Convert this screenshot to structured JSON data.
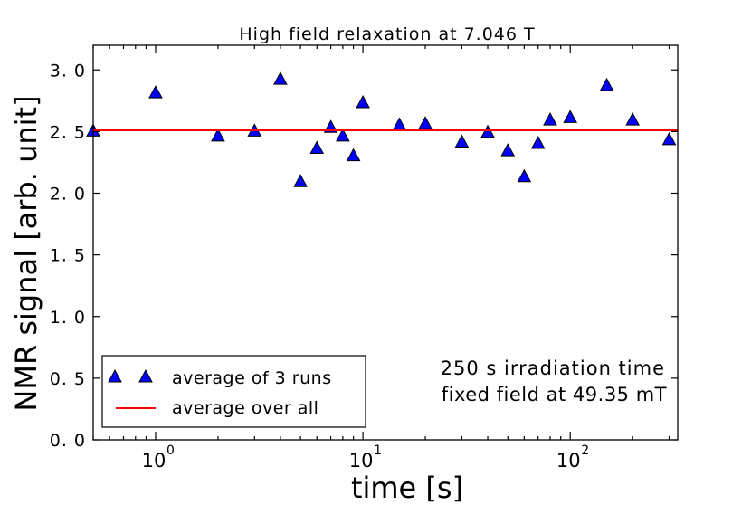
{
  "chart_data": {
    "type": "scatter",
    "title": "High field relaxation at 7.046 T",
    "xlabel": "time [s]",
    "ylabel": "NMR signal [arb. unit]",
    "xscale": "log",
    "xlim": [
      0.5,
      330
    ],
    "ylim": [
      0.0,
      3.2
    ],
    "yticks": [
      0.0,
      0.5,
      1.0,
      1.5,
      2.0,
      2.5,
      3.0
    ],
    "ytick_labels": [
      "0. 0",
      "0. 5",
      "1. 0",
      "1. 5",
      "2. 0",
      "2. 5",
      "3. 0"
    ],
    "xticks": [
      1,
      10,
      100
    ],
    "xtick_labels": [
      {
        "base": "10",
        "exp": "0"
      },
      {
        "base": "10",
        "exp": "1"
      },
      {
        "base": "10",
        "exp": "2"
      }
    ],
    "series": [
      {
        "name": "average of 3 runs",
        "marker": "triangle",
        "color": "#0000ff",
        "x": [
          0.5,
          1,
          2,
          3,
          4,
          5,
          6,
          7,
          8,
          9,
          10,
          15,
          20,
          30,
          40,
          50,
          60,
          70,
          80,
          100,
          150,
          200,
          300
        ],
        "y": [
          2.5,
          2.81,
          2.46,
          2.5,
          2.92,
          2.09,
          2.36,
          2.53,
          2.46,
          2.3,
          2.73,
          2.55,
          2.56,
          2.41,
          2.49,
          2.34,
          2.13,
          2.4,
          2.59,
          2.61,
          2.87,
          2.59,
          2.43
        ]
      },
      {
        "name": "average over all",
        "type": "hline",
        "color": "#ff0000",
        "y": 2.51
      }
    ],
    "legend_location": "lower-left",
    "legend": [
      "average of 3 runs",
      "average over all"
    ],
    "annotation": [
      "250 s irradiation time",
      "fixed field at 49.35 mT"
    ]
  }
}
